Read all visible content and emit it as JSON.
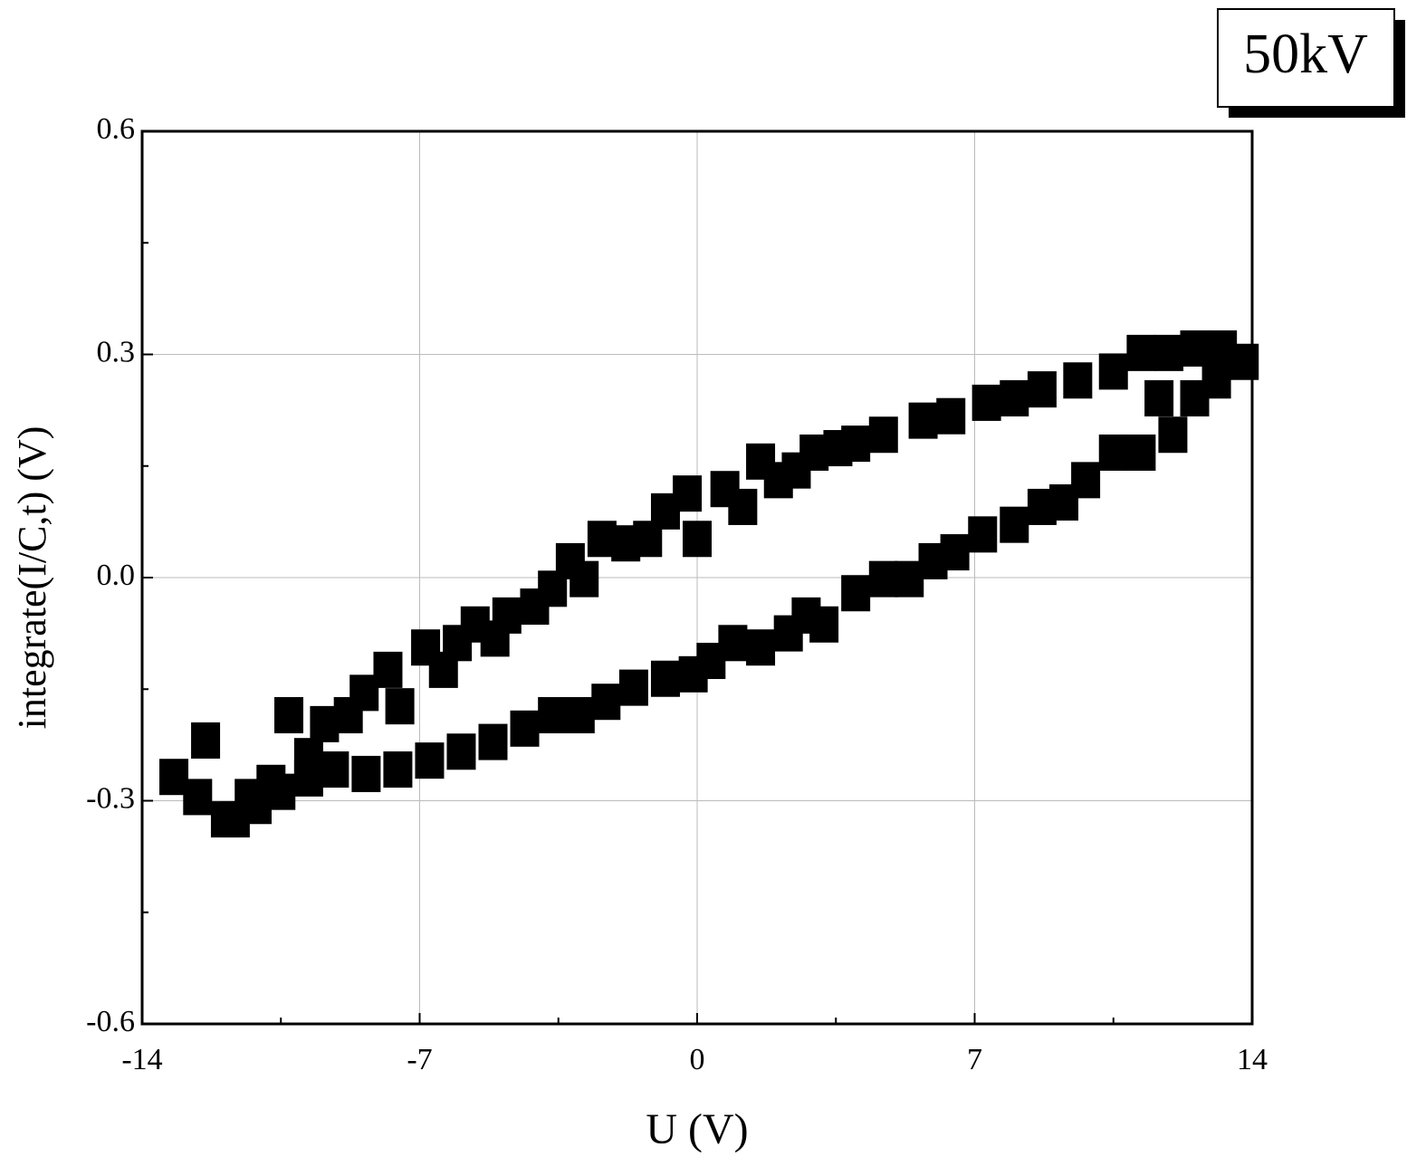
{
  "chart_data": {
    "type": "scatter",
    "annotation": "50kV",
    "xlabel": "U (V)",
    "ylabel": "integrate(I/C,t) (V)",
    "xlim": [
      -14,
      14
    ],
    "ylim": [
      -0.6,
      0.6
    ],
    "xticks": [
      -14,
      -7,
      0,
      7,
      14
    ],
    "yticks": [
      -0.6,
      -0.3,
      {
        "value": 0,
        "label": "0.0"
      },
      0.3,
      0.6
    ],
    "minor_xticks": [
      -10.5,
      -3.5,
      3.5,
      10.5
    ],
    "minor_yticks": [
      -0.45,
      -0.15,
      0.15,
      0.45
    ],
    "grid": true,
    "color": "#000000",
    "x": [
      -13.2,
      -12.6,
      -11.9,
      -11.3,
      -10.75,
      -10.3,
      -9.8,
      -9.4,
      -8.8,
      -8.4,
      -7.8,
      -7.5,
      -6.85,
      -6.4,
      -6.05,
      -5.6,
      -5.1,
      -4.8,
      -4.1,
      -3.65,
      -3.2,
      -2.85,
      -2.4,
      -1.8,
      -1.25,
      -0.8,
      -0.25,
      0,
      0.7,
      1.15,
      1.6,
      2.05,
      2.5,
      2.95,
      3.55,
      4.0,
      4.7,
      5.7,
      6.4,
      7.3,
      8.0,
      8.7,
      9.6,
      10.5,
      11.2,
      11.9,
      12.55,
      13.25,
      13.8,
      13.1,
      12.55,
      12.0,
      11.65,
      11.2,
      10.5,
      9.8,
      9.25,
      8.7,
      8.0,
      7.2,
      6.5,
      5.95,
      5.35,
      4.7,
      4.0,
      3.2,
      2.75,
      2.3,
      1.6,
      0.9,
      0.35,
      -0.1,
      -0.8,
      -1.6,
      -2.3,
      -2.95,
      -3.65,
      -4.35,
      -5.15,
      -5.95,
      -6.75,
      -7.55,
      -8.35,
      -9.15,
      -9.8,
      -10.5,
      -11.1,
      -11.65,
      -12.4
    ],
    "y": [
      -0.268,
      -0.295,
      -0.325,
      -0.295,
      -0.276,
      -0.185,
      -0.24,
      -0.197,
      -0.185,
      -0.155,
      -0.124,
      -0.173,
      -0.094,
      -0.124,
      -0.088,
      -0.063,
      -0.082,
      -0.051,
      -0.039,
      -0.015,
      0.022,
      -0.002,
      0.052,
      0.046,
      0.052,
      0.089,
      0.113,
      0.052,
      0.119,
      0.095,
      0.156,
      0.131,
      0.144,
      0.168,
      0.174,
      0.18,
      0.192,
      0.211,
      0.217,
      0.235,
      0.241,
      0.253,
      0.265,
      0.277,
      0.302,
      0.302,
      0.308,
      0.308,
      0.29,
      0.265,
      0.241,
      0.192,
      0.241,
      0.168,
      0.168,
      0.131,
      0.101,
      0.095,
      0.071,
      0.058,
      0.034,
      0.022,
      -0.002,
      -0.002,
      -0.021,
      -0.063,
      -0.051,
      -0.075,
      -0.094,
      -0.088,
      -0.112,
      -0.13,
      -0.136,
      -0.148,
      -0.167,
      -0.185,
      -0.185,
      -0.203,
      -0.221,
      -0.234,
      -0.246,
      -0.258,
      -0.264,
      -0.258,
      -0.27,
      -0.288,
      -0.307,
      -0.325,
      -0.219
    ]
  }
}
